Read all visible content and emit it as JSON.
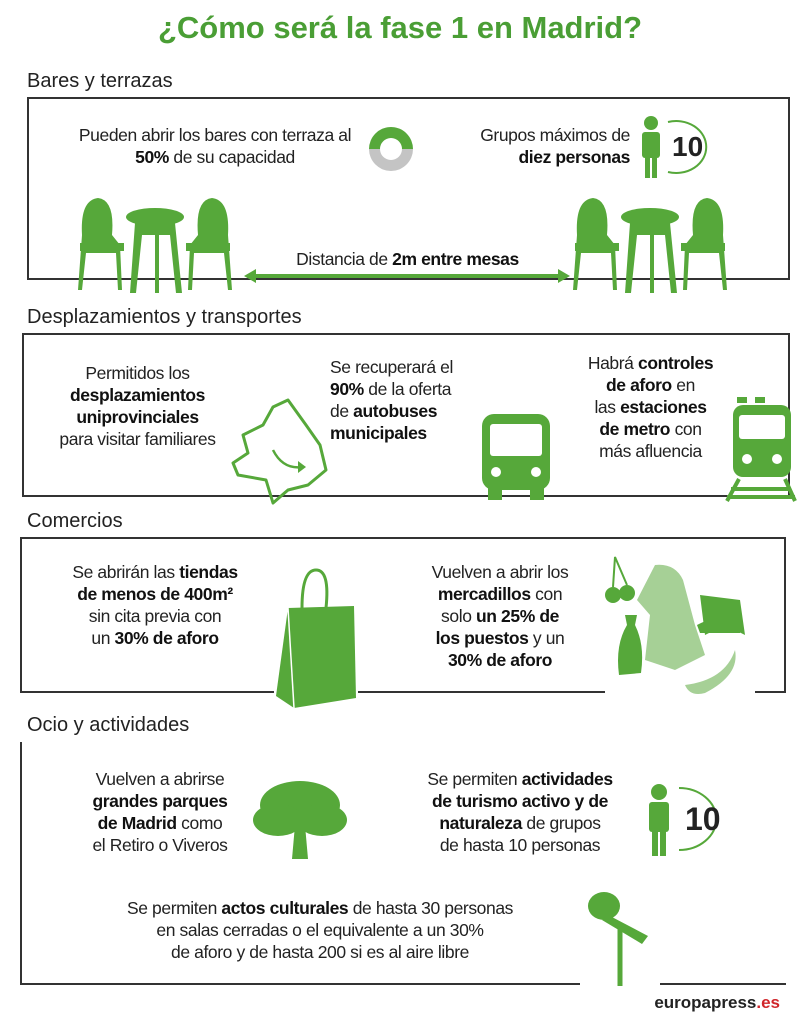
{
  "title": "¿Cómo será la fase 1 en Madrid?",
  "colors": {
    "accent": "#4a9e35",
    "light_accent": "#a6d096",
    "gray": "#c4c4c4"
  },
  "sections": [
    {
      "heading": "Bares y terrazas",
      "items": [
        {
          "pre": "Pueden abrir los bares con terraza al ",
          "bold": "50%",
          "post": " de su capacidad",
          "icon": "half-donut-icon",
          "capacity_percent": 50
        },
        {
          "pre": "Grupos máximos de ",
          "bold": "diez personas",
          "icon": "person-icon",
          "badge": "10"
        },
        {
          "pre": "Distancia de ",
          "bold": "2m entre mesas",
          "icon": "double-arrow-icon"
        }
      ]
    },
    {
      "heading": "Desplazamientos y transportes",
      "items": [
        {
          "l1": "Permitidos los",
          "b1": "desplazamientos",
          "b2": "uniprovinciales",
          "l2": "para visitar familiares",
          "icon": "madrid-map-icon"
        },
        {
          "l1": "Se recuperará el",
          "b1": "90%",
          "l1b": " de la oferta",
          "l2": "de ",
          "b2": "autobuses",
          "b3": "municipales",
          "icon": "bus-icon"
        },
        {
          "l1": "Habrá ",
          "b1": "controles",
          "b2": "de aforo",
          "l2": " en",
          "l3": "las ",
          "b3": "estaciones",
          "b4": "de metro",
          "l4": " con",
          "l5": "más afluencia",
          "icon": "train-icon"
        }
      ]
    },
    {
      "heading": "Comercios",
      "items": [
        {
          "l1": "Se abrirán las ",
          "b1": "tiendas",
          "b2": "de menos de 400m²",
          "l2": "sin cita previa con",
          "l3": "un ",
          "b3": "30% de aforo",
          "icon": "shopping-bag-icon"
        },
        {
          "l1": "Vuelven a abrir los",
          "b1": "mercadillos",
          "l2": " con",
          "l3": "solo ",
          "b2": "un 25% de",
          "b3": "los puestos",
          "l4": " y un",
          "b4": "30% de aforo",
          "icon": "market-goods-icon"
        }
      ]
    },
    {
      "heading": "Ocio y actividades",
      "items": [
        {
          "l1": "Vuelven a abrirse",
          "b1": "grandes parques",
          "b2": "de Madrid",
          "l2": " como",
          "l3": "el Retiro o Viveros",
          "icon": "tree-icon"
        },
        {
          "l1": "Se permiten ",
          "b1": "actividades",
          "b2": "de turismo activo y de",
          "b3": "naturaleza",
          "l2": " de grupos",
          "l3": "de hasta 10 personas",
          "icon": "person-icon",
          "badge": "10"
        },
        {
          "l1": "Se permiten ",
          "b1": "actos culturales",
          "l1b": " de hasta 30 personas",
          "l2": "en salas cerradas o el equivalente a un 30%",
          "l3": "de aforo y de hasta 200 si es al aire libre",
          "icon": "microphone-icon"
        }
      ]
    }
  ],
  "brand": {
    "name": "europapress",
    ".": "",
    "tld": ".es"
  }
}
